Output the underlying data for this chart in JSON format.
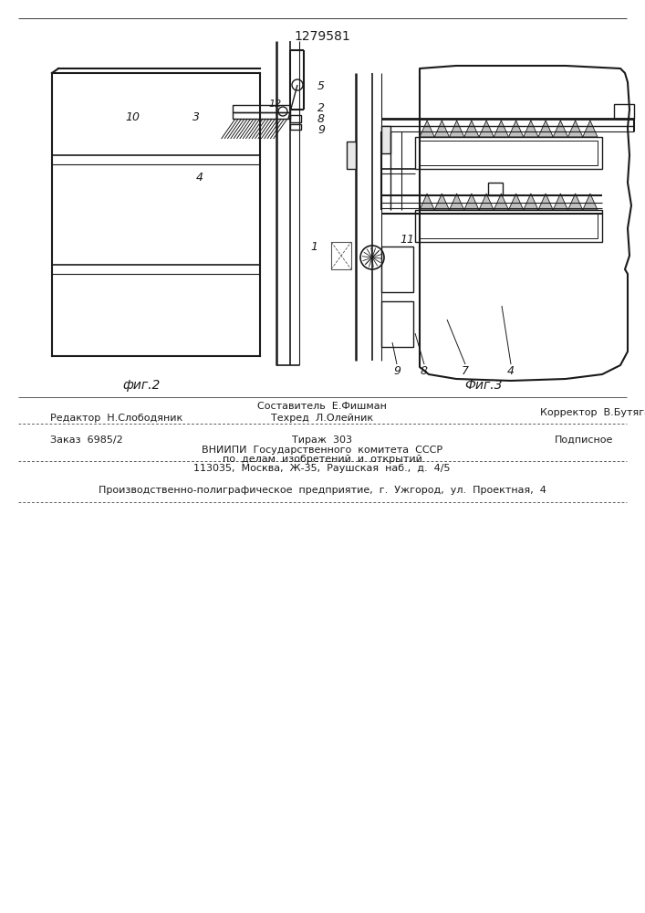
{
  "patent_number": "1279581",
  "fig2_label": "фиг.2",
  "fig3_label": "Фиг.3",
  "bg_color": "#ffffff",
  "line_color": "#1a1a1a",
  "footer": {
    "editor": "Редактор  Н.Слободяник",
    "composer": "Составитель  Е.Фишман",
    "techred": "Техред  Л.Олейник",
    "corrector": "Корректор  В.Бутяга",
    "order": "Заказ  6985/2",
    "edition": "Тираж  303",
    "type": "Подписное",
    "org1": "ВНИИПИ  Государственного  комитета  СССР",
    "org2": "по  делам  изобретений  и  открытий",
    "org3": "113035,  Москва,  Ж-35,  Раушская  наб.,  д.  4/5",
    "printer": "Производственно-полиграфическое  предприятие,  г.  Ужгород,  ул.  Проектная,  4"
  }
}
